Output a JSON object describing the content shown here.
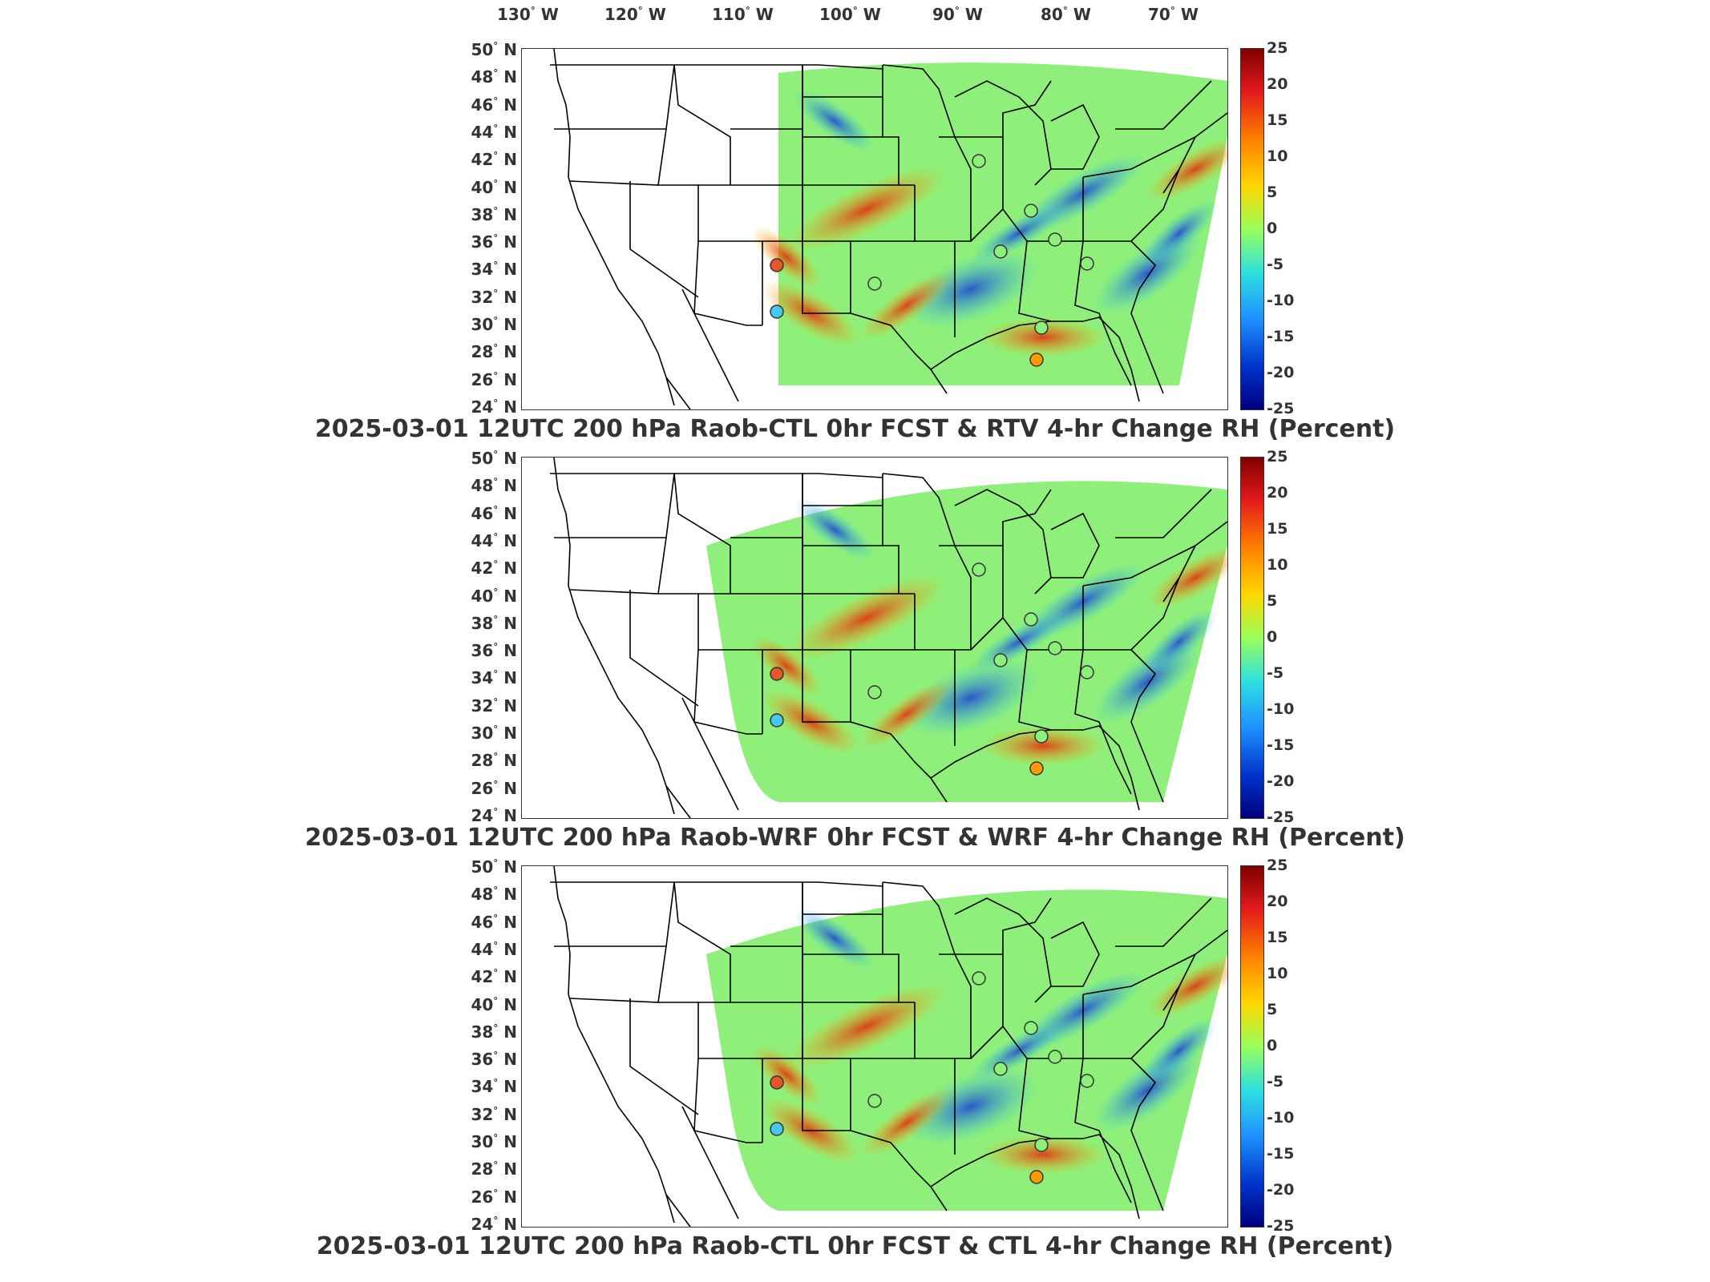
{
  "lon_labels": [
    {
      "deg": "130",
      "dir": "W"
    },
    {
      "deg": "120",
      "dir": "W"
    },
    {
      "deg": "110",
      "dir": "W"
    },
    {
      "deg": "100",
      "dir": "W"
    },
    {
      "deg": "90",
      "dir": "W"
    },
    {
      "deg": "80",
      "dir": "W"
    },
    {
      "deg": "70",
      "dir": "W"
    }
  ],
  "lat_labels": [
    {
      "deg": "50",
      "dir": "N"
    },
    {
      "deg": "48",
      "dir": "N"
    },
    {
      "deg": "46",
      "dir": "N"
    },
    {
      "deg": "44",
      "dir": "N"
    },
    {
      "deg": "42",
      "dir": "N"
    },
    {
      "deg": "40",
      "dir": "N"
    },
    {
      "deg": "38",
      "dir": "N"
    },
    {
      "deg": "36",
      "dir": "N"
    },
    {
      "deg": "34",
      "dir": "N"
    },
    {
      "deg": "32",
      "dir": "N"
    },
    {
      "deg": "30",
      "dir": "N"
    },
    {
      "deg": "28",
      "dir": "N"
    },
    {
      "deg": "26",
      "dir": "N"
    },
    {
      "deg": "24",
      "dir": "N"
    }
  ],
  "colorbar_ticks": [
    "25",
    "20",
    "15",
    "10",
    "5",
    "0",
    "-5",
    "-10",
    "-15",
    "-20",
    "-25"
  ],
  "panels": [
    {
      "title": "2025-03-01 12UTC 200 hPa Raob-CTL 0hr FCST & RTV 4-hr Change RH (Percent)"
    },
    {
      "title": "2025-03-01 12UTC 200 hPa Raob-WRF 0hr FCST & WRF 4-hr Change RH (Percent)"
    },
    {
      "title": "2025-03-01 12UTC 200 hPa Raob-CTL 0hr FCST & CTL 4-hr Change RH (Percent)"
    }
  ],
  "colors": {
    "field_base": "#8ef07a",
    "positive": "#ffb000",
    "strong_positive": "#e03010",
    "negative": "#30c8f0",
    "strong_negative": "#1a3fd6"
  }
}
